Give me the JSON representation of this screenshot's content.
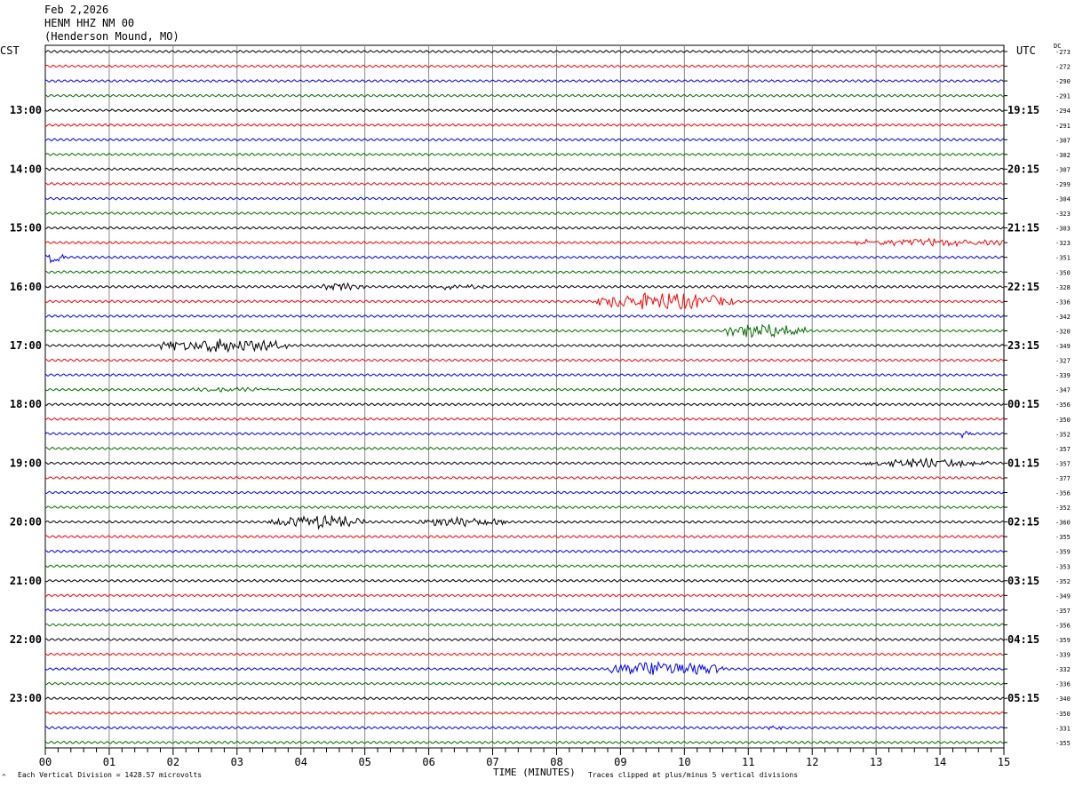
{
  "header": {
    "date": "Feb 2,2026",
    "station": "HENM HHZ NM 00",
    "location": "(Henderson Mound, MO)"
  },
  "left_axis_label": "CST",
  "right_axis_label": "UTC",
  "dc_label": "DC",
  "footer": {
    "left_mark": "^",
    "scale_note": "Each Vertical Division = 1428.57 microvolts",
    "xlabel": "TIME (MINUTES)",
    "clip_note": "Traces clipped at plus/minus 5 vertical divisions"
  },
  "chart_data": {
    "type": "line",
    "title": "HENM HHZ NM 00",
    "xlabel": "TIME (MINUTES)",
    "xlim": [
      0,
      15
    ],
    "x_ticks": [
      "00",
      "01",
      "02",
      "03",
      "04",
      "05",
      "06",
      "07",
      "08",
      "09",
      "10",
      "11",
      "12",
      "13",
      "14",
      "15"
    ],
    "trace_colors": [
      "#000000",
      "#ff0000",
      "#0000ff",
      "#007000"
    ],
    "cst_labels": [
      "13:00",
      "14:00",
      "15:00",
      "16:00",
      "17:00",
      "18:00",
      "19:00",
      "20:00",
      "21:00",
      "22:00",
      "23:00"
    ],
    "utc_labels": [
      "19:15",
      "20:15",
      "21:15",
      "22:15",
      "23:15",
      "00:15",
      "01:15",
      "02:15",
      "03:15",
      "04:15",
      "05:15"
    ],
    "dc_offsets": [
      -273,
      -272,
      -290,
      -291,
      -294,
      -291,
      -307,
      -302,
      -307,
      -299,
      -304,
      -323,
      -303,
      -323,
      -351,
      -350,
      -328,
      -336,
      -342,
      -320,
      -349,
      -327,
      -339,
      -347,
      -356,
      -350,
      -352,
      -357,
      -357,
      -377,
      -356,
      -352,
      -360,
      -355,
      -359,
      -353,
      -352,
      -349,
      -357,
      -356,
      -359,
      -339,
      -332,
      -336,
      -340,
      -350,
      -331,
      -355
    ],
    "events": [
      {
        "trace": 13,
        "start_min": 12.5,
        "end_min": 15.0,
        "amp": 4
      },
      {
        "trace": 14,
        "start_min": 0.0,
        "end_min": 0.3,
        "amp": 8
      },
      {
        "trace": 16,
        "start_min": 4.3,
        "end_min": 5.0,
        "amp": 4
      },
      {
        "trace": 16,
        "start_min": 6.0,
        "end_min": 6.9,
        "amp": 3
      },
      {
        "trace": 17,
        "start_min": 8.6,
        "end_min": 10.8,
        "amp": 10
      },
      {
        "trace": 19,
        "start_min": 10.6,
        "end_min": 11.9,
        "amp": 9
      },
      {
        "trace": 20,
        "start_min": 1.8,
        "end_min": 3.8,
        "amp": 8
      },
      {
        "trace": 23,
        "start_min": 2.2,
        "end_min": 3.8,
        "amp": 2
      },
      {
        "trace": 26,
        "start_min": 14.3,
        "end_min": 14.5,
        "amp": 5
      },
      {
        "trace": 28,
        "start_min": 12.8,
        "end_min": 14.8,
        "amp": 5
      },
      {
        "trace": 32,
        "start_min": 3.5,
        "end_min": 5.0,
        "amp": 8
      },
      {
        "trace": 32,
        "start_min": 5.8,
        "end_min": 7.2,
        "amp": 5
      },
      {
        "trace": 42,
        "start_min": 8.8,
        "end_min": 10.6,
        "amp": 9
      },
      {
        "trace": 46,
        "start_min": 11.3,
        "end_min": 11.6,
        "amp": 3
      }
    ]
  }
}
